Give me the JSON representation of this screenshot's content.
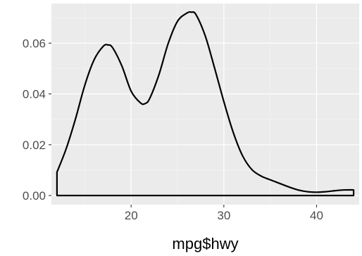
{
  "chart_data": {
    "type": "area",
    "title": "",
    "xlabel": "mpg$hwy",
    "ylabel": "",
    "xlim": [
      11.4,
      44.6
    ],
    "ylim": [
      -0.0036,
      0.0756
    ],
    "grid": true,
    "x_ticks": [
      20,
      30,
      40
    ],
    "x_tick_labels": [
      "20",
      "30",
      "40"
    ],
    "y_ticks": [
      0.0,
      0.02,
      0.04,
      0.06
    ],
    "y_tick_labels": [
      "0.00",
      "0.02",
      "0.04",
      "0.06"
    ],
    "series": [
      {
        "x": [
          12,
          13,
          14,
          15,
          16,
          17,
          17.5,
          18,
          19,
          20,
          21,
          21.5,
          22,
          23,
          24,
          25,
          26,
          26.5,
          27,
          28,
          29,
          30,
          31,
          32,
          33,
          34,
          35,
          36,
          37,
          38,
          39,
          40,
          41,
          42,
          43,
          44
        ],
        "y": [
          0.0092,
          0.0185,
          0.0302,
          0.0434,
          0.0534,
          0.0588,
          0.0593,
          0.0582,
          0.051,
          0.0411,
          0.0365,
          0.0362,
          0.0382,
          0.0476,
          0.0599,
          0.0686,
          0.0718,
          0.0722,
          0.0712,
          0.0628,
          0.0502,
          0.037,
          0.025,
          0.0158,
          0.0103,
          0.0077,
          0.0062,
          0.0048,
          0.0034,
          0.0022,
          0.0015,
          0.0013,
          0.0015,
          0.0019,
          0.0022,
          0.0022
        ]
      }
    ]
  },
  "colors": {
    "panel_background": "#ebebeb",
    "major_grid": "#ffffff",
    "minor_grid": "#f5f5f5",
    "line": "#000000",
    "tick_text": "#4d4d4d"
  }
}
